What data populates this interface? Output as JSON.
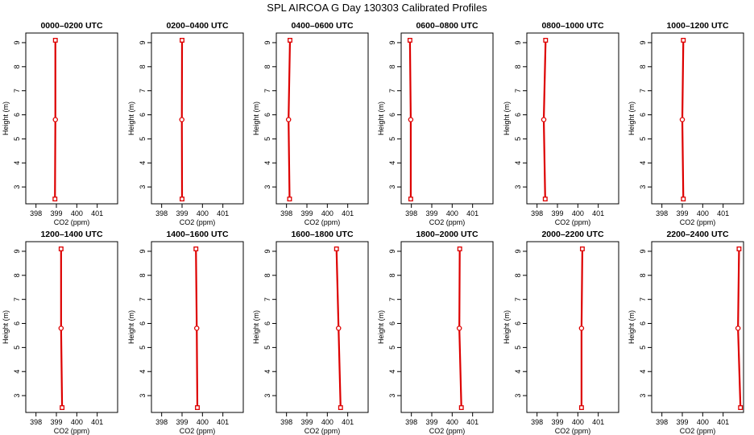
{
  "title": "SPL AIRCOA G  Day 130303  Calibrated Profiles",
  "chart_data": [
    {
      "type": "line",
      "title": "0000–0200 UTC",
      "xlabel": "CO2 (ppm)",
      "ylabel": "Height (m)",
      "xlim": [
        397.5,
        402.0
      ],
      "ylim": [
        2.3,
        9.4
      ],
      "xticks": [
        398,
        399,
        400,
        401
      ],
      "yticks": [
        3,
        4,
        5,
        6,
        7,
        8,
        9
      ],
      "grid": false,
      "x": [
        398.93,
        398.95,
        398.95
      ],
      "y": [
        2.5,
        5.8,
        9.1
      ]
    },
    {
      "type": "line",
      "title": "0200–0400 UTC",
      "xlabel": "CO2 (ppm)",
      "ylabel": "Height (m)",
      "xlim": [
        397.5,
        402.0
      ],
      "ylim": [
        2.3,
        9.4
      ],
      "xticks": [
        398,
        399,
        400,
        401
      ],
      "yticks": [
        3,
        4,
        5,
        6,
        7,
        8,
        9
      ],
      "grid": false,
      "x": [
        399.0,
        398.99,
        399.0
      ],
      "y": [
        2.5,
        5.8,
        9.1
      ]
    },
    {
      "type": "line",
      "title": "0400–0600 UTC",
      "xlabel": "CO2 (ppm)",
      "ylabel": "Height (m)",
      "xlim": [
        397.5,
        402.0
      ],
      "ylim": [
        2.3,
        9.4
      ],
      "xticks": [
        398,
        399,
        400,
        401
      ],
      "yticks": [
        3,
        4,
        5,
        6,
        7,
        8,
        9
      ],
      "grid": false,
      "x": [
        398.15,
        398.1,
        398.17
      ],
      "y": [
        2.5,
        5.8,
        9.1
      ]
    },
    {
      "type": "line",
      "title": "0600–0800 UTC",
      "xlabel": "CO2 (ppm)",
      "ylabel": "Height (m)",
      "xlim": [
        397.5,
        402.0
      ],
      "ylim": [
        2.3,
        9.4
      ],
      "xticks": [
        398,
        399,
        400,
        401
      ],
      "yticks": [
        3,
        4,
        5,
        6,
        7,
        8,
        9
      ],
      "grid": false,
      "x": [
        397.97,
        397.97,
        397.93
      ],
      "y": [
        2.5,
        5.8,
        9.1
      ]
    },
    {
      "type": "line",
      "title": "0800–1000 UTC",
      "xlabel": "CO2 (ppm)",
      "ylabel": "Height (m)",
      "xlim": [
        397.5,
        402.0
      ],
      "ylim": [
        2.3,
        9.4
      ],
      "xticks": [
        398,
        399,
        400,
        401
      ],
      "yticks": [
        3,
        4,
        5,
        6,
        7,
        8,
        9
      ],
      "grid": false,
      "x": [
        398.4,
        398.33,
        398.42
      ],
      "y": [
        2.5,
        5.8,
        9.1
      ]
    },
    {
      "type": "line",
      "title": "1000–1200 UTC",
      "xlabel": "CO2 (ppm)",
      "ylabel": "Height (m)",
      "xlim": [
        397.5,
        402.0
      ],
      "ylim": [
        2.3,
        9.4
      ],
      "xticks": [
        398,
        399,
        400,
        401
      ],
      "yticks": [
        3,
        4,
        5,
        6,
        7,
        8,
        9
      ],
      "grid": false,
      "x": [
        399.05,
        399.0,
        399.05
      ],
      "y": [
        2.5,
        5.8,
        9.1
      ]
    },
    {
      "type": "line",
      "title": "1200–1400 UTC",
      "xlabel": "CO2 (ppm)",
      "ylabel": "Height (m)",
      "xlim": [
        397.5,
        402.0
      ],
      "ylim": [
        2.3,
        9.4
      ],
      "xticks": [
        398,
        399,
        400,
        401
      ],
      "yticks": [
        3,
        4,
        5,
        6,
        7,
        8,
        9
      ],
      "grid": false,
      "x": [
        399.28,
        399.23,
        399.23
      ],
      "y": [
        2.5,
        5.8,
        9.1
      ]
    },
    {
      "type": "line",
      "title": "1400–1600 UTC",
      "xlabel": "CO2 (ppm)",
      "ylabel": "Height (m)",
      "xlim": [
        397.5,
        402.0
      ],
      "ylim": [
        2.3,
        9.4
      ],
      "xticks": [
        398,
        399,
        400,
        401
      ],
      "yticks": [
        3,
        4,
        5,
        6,
        7,
        8,
        9
      ],
      "grid": false,
      "x": [
        399.75,
        399.72,
        399.68
      ],
      "y": [
        2.5,
        5.8,
        9.1
      ]
    },
    {
      "type": "line",
      "title": "1600–1800 UTC",
      "xlabel": "CO2 (ppm)",
      "ylabel": "Height (m)",
      "xlim": [
        397.5,
        402.0
      ],
      "ylim": [
        2.3,
        9.4
      ],
      "xticks": [
        398,
        399,
        400,
        401
      ],
      "yticks": [
        3,
        4,
        5,
        6,
        7,
        8,
        9
      ],
      "grid": false,
      "x": [
        400.65,
        400.55,
        400.45
      ],
      "y": [
        2.5,
        5.8,
        9.1
      ]
    },
    {
      "type": "line",
      "title": "1800–2000 UTC",
      "xlabel": "CO2 (ppm)",
      "ylabel": "Height (m)",
      "xlim": [
        397.5,
        402.0
      ],
      "ylim": [
        2.3,
        9.4
      ],
      "xticks": [
        398,
        399,
        400,
        401
      ],
      "yticks": [
        3,
        4,
        5,
        6,
        7,
        8,
        9
      ],
      "grid": false,
      "x": [
        400.45,
        400.35,
        400.37
      ],
      "y": [
        2.5,
        5.8,
        9.1
      ]
    },
    {
      "type": "line",
      "title": "2000–2200 UTC",
      "xlabel": "CO2 (ppm)",
      "ylabel": "Height (m)",
      "xlim": [
        397.5,
        402.0
      ],
      "ylim": [
        2.3,
        9.4
      ],
      "xticks": [
        398,
        399,
        400,
        401
      ],
      "yticks": [
        3,
        4,
        5,
        6,
        7,
        8,
        9
      ],
      "grid": false,
      "x": [
        400.18,
        400.18,
        400.22
      ],
      "y": [
        2.5,
        5.8,
        9.1
      ]
    },
    {
      "type": "line",
      "title": "2200–2400 UTC",
      "xlabel": "CO2 (ppm)",
      "ylabel": "Height (m)",
      "xlim": [
        397.5,
        402.0
      ],
      "ylim": [
        2.3,
        9.4
      ],
      "xticks": [
        398,
        399,
        400,
        401
      ],
      "yticks": [
        3,
        4,
        5,
        6,
        7,
        8,
        9
      ],
      "grid": false,
      "x": [
        401.85,
        401.73,
        401.78
      ],
      "y": [
        2.5,
        5.8,
        9.1
      ]
    }
  ],
  "colors": {
    "series": "#dd0000",
    "axes": "#000000"
  }
}
